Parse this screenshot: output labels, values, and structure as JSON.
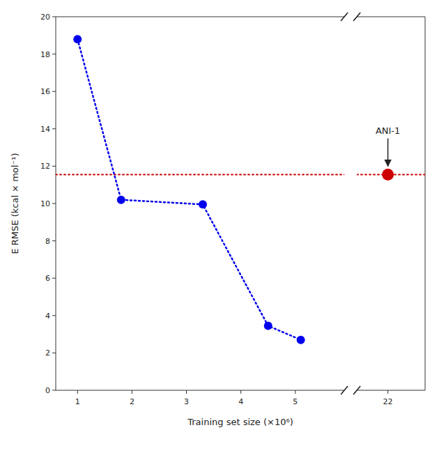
{
  "chart_data": {
    "type": "line",
    "x_label": "Training set size (×10⁶)",
    "y_label": "E RMSE (kcal × mol⁻¹)",
    "ylim": [
      0,
      20
    ],
    "yticks": [
      0,
      2,
      4,
      6,
      8,
      10,
      12,
      14,
      16,
      18,
      20
    ],
    "x_segments": [
      {
        "xlim": [
          0.6,
          5.9
        ],
        "xticks": [
          1,
          2,
          3,
          4,
          5
        ]
      },
      {
        "xlim": [
          20.5,
          23.8
        ],
        "xticks": [
          22
        ]
      }
    ],
    "series": [
      {
        "type": "line",
        "color": "#0000EE",
        "marker": "circle",
        "line_style": "dotted",
        "x": [
          1.0,
          1.8,
          3.3,
          4.5,
          5.1
        ],
        "values": [
          18.8,
          10.2,
          9.95,
          3.45,
          2.7
        ]
      },
      {
        "type": "scatter",
        "color": "#CC0000",
        "marker": "circle",
        "x": [
          22.0
        ],
        "values": [
          11.55
        ]
      }
    ],
    "reference_lines": [
      {
        "value": 11.55,
        "color": "#CC0000",
        "line_style": "dotted"
      }
    ],
    "annotations": [
      {
        "text": "ANI-1",
        "x": 22.0,
        "y": 11.55
      }
    ]
  }
}
